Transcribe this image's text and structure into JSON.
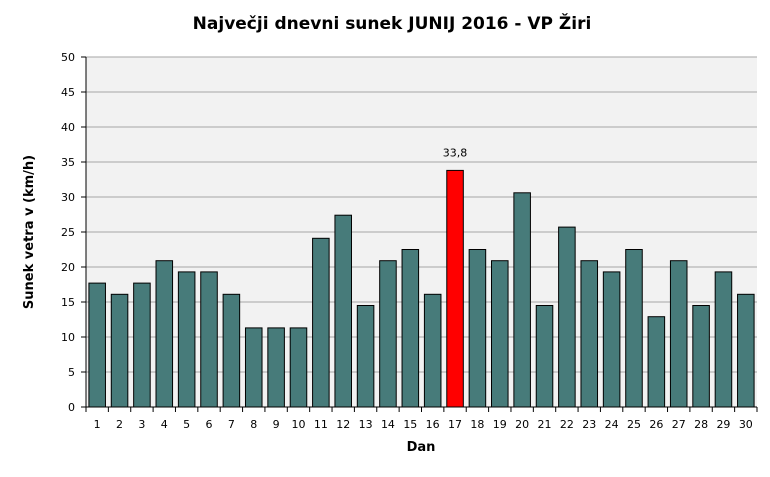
{
  "chart_data": {
    "type": "bar",
    "title": "Največji dnevni sunek JUNIJ 2016 - VP Žiri",
    "xlabel": "Dan",
    "ylabel": "Sunek vetra v (km/h)",
    "ylim": [
      0,
      50
    ],
    "yticks": [
      "0",
      "5",
      "10",
      "15",
      "20",
      "25",
      "30",
      "35",
      "40",
      "45",
      "50"
    ],
    "grid": true,
    "categories": [
      "1",
      "2",
      "3",
      "4",
      "5",
      "6",
      "7",
      "8",
      "9",
      "10",
      "11",
      "12",
      "13",
      "14",
      "15",
      "16",
      "17",
      "18",
      "19",
      "20",
      "21",
      "22",
      "23",
      "24",
      "25",
      "26",
      "27",
      "28",
      "29",
      "30"
    ],
    "values": [
      17.7,
      16.1,
      17.7,
      20.9,
      19.3,
      19.3,
      16.1,
      11.3,
      11.3,
      11.3,
      24.1,
      27.4,
      14.5,
      20.9,
      22.5,
      16.1,
      33.8,
      22.5,
      20.9,
      30.6,
      14.5,
      25.7,
      20.9,
      19.3,
      22.5,
      12.9,
      20.9,
      14.5,
      19.3,
      16.1
    ],
    "highlight_index": 16,
    "highlight_label": "33,8",
    "colors": {
      "bar": "#477b7a",
      "highlight": "#ff0000",
      "bar_stroke": "#000000",
      "plot_bg": "#f2f2f2",
      "grid": "#a6a6a6"
    }
  }
}
